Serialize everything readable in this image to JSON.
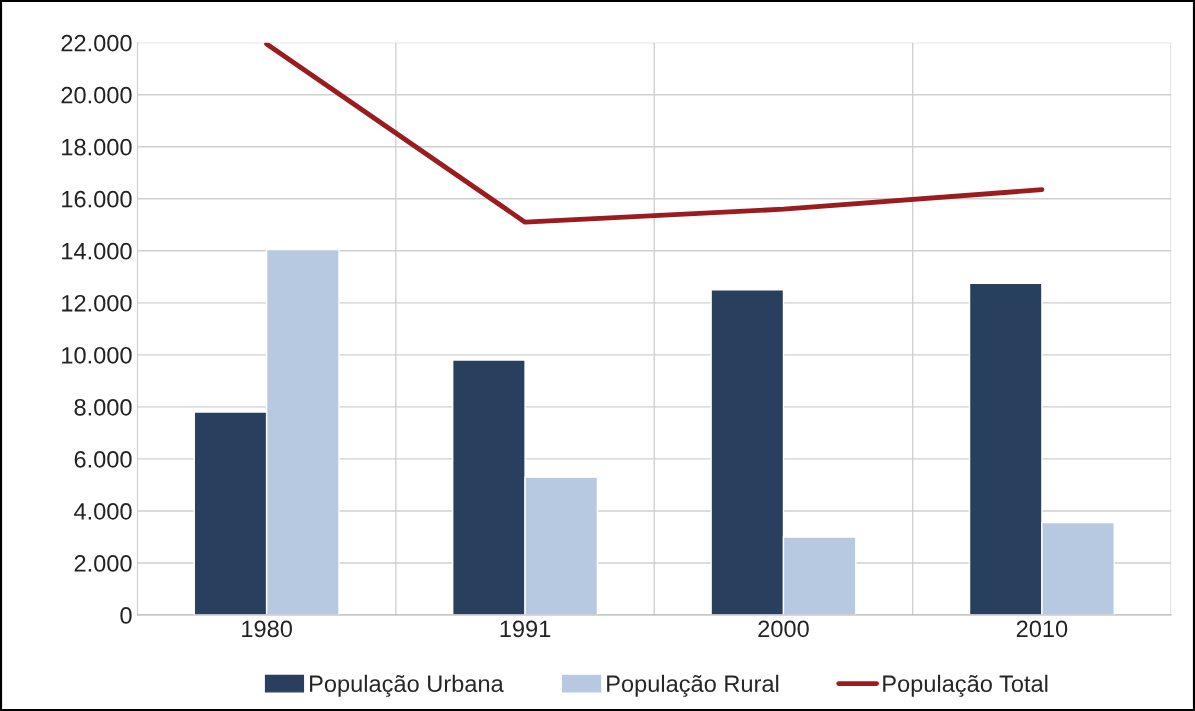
{
  "chart_data": {
    "type": "bar",
    "categories": [
      "1980",
      "1991",
      "2000",
      "2010"
    ],
    "series": [
      {
        "name": "População Urbana",
        "color": "#283f5e",
        "values": [
          7800,
          9800,
          12500,
          12750
        ]
      },
      {
        "name": "População Rural",
        "color": "#b6c9e1",
        "values": [
          14050,
          5300,
          3000,
          3550
        ]
      },
      {
        "name": "População Total",
        "type": "line",
        "color": "#9b1c1f",
        "values": [
          21950,
          15100,
          15600,
          16350
        ]
      }
    ],
    "ylim": [
      0,
      22000
    ],
    "yticks": [
      {
        "value": 0,
        "label": "0"
      },
      {
        "value": 2000,
        "label": "2.000"
      },
      {
        "value": 4000,
        "label": "4.000"
      },
      {
        "value": 6000,
        "label": "6.000"
      },
      {
        "value": 8000,
        "label": "8.000"
      },
      {
        "value": 10000,
        "label": "10.000"
      },
      {
        "value": 12000,
        "label": "12.000"
      },
      {
        "value": 14000,
        "label": "14.000"
      },
      {
        "value": 16000,
        "label": "16.000"
      },
      {
        "value": 18000,
        "label": "18.000"
      },
      {
        "value": 20000,
        "label": "20.000"
      },
      {
        "value": 22000,
        "label": "22.000"
      }
    ],
    "grid": true,
    "legend": "bottom",
    "marker": "none",
    "line_style": "solid"
  }
}
